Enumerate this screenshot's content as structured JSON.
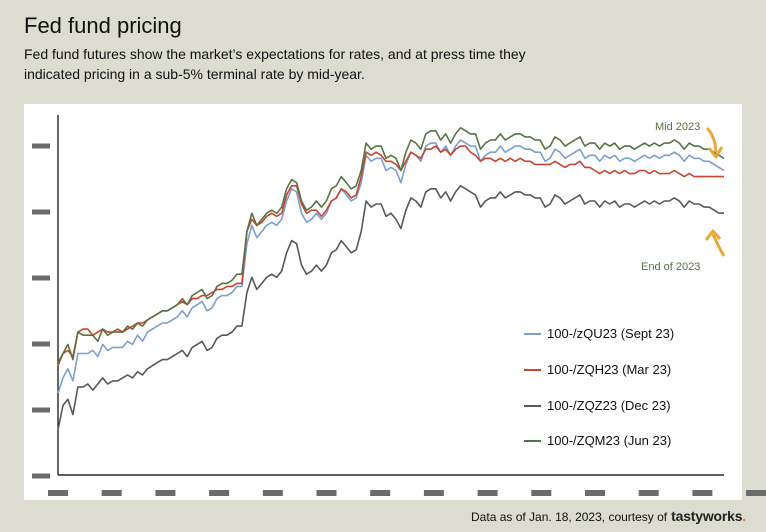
{
  "header": {
    "title": "Fed fund pricing",
    "subtitle": "Fed fund futures show the market’s expectations for rates, and at press time they indicated pricing in a sub-5% terminal rate by mid-year."
  },
  "footer": {
    "source_text": "Data as of Jan. 18, 2023, courtesy of",
    "brand_name": "tastyworks",
    "brand_dot": "."
  },
  "annotations": {
    "top": "Mid 2023",
    "bottom": "End of 2023",
    "arrow_color": "#e8a93a"
  },
  "chart_data": {
    "type": "line",
    "title": "",
    "xlabel": "",
    "ylabel": "",
    "x_ticks_count": 14,
    "y_ticks_count": 6,
    "tick_labels_redacted": true,
    "x": [
      0,
      1,
      2,
      3,
      4,
      5,
      6,
      7,
      8,
      9,
      10,
      11,
      12,
      13,
      14,
      15,
      16,
      17,
      18,
      19,
      20,
      21,
      22,
      23,
      24,
      25,
      26,
      27,
      28,
      29,
      30,
      31,
      32,
      33,
      34,
      35,
      36,
      37,
      38,
      39,
      40,
      41,
      42,
      43,
      44,
      45,
      46,
      47,
      48,
      49,
      50,
      51,
      52,
      53,
      54,
      55,
      56,
      57,
      58,
      59,
      60,
      61,
      62,
      63,
      64,
      65,
      66,
      67,
      68,
      69,
      70,
      71,
      72,
      73,
      74,
      75,
      76,
      77,
      78,
      79,
      80,
      81,
      82,
      83,
      84,
      85,
      86,
      87,
      88,
      89,
      90,
      91,
      92,
      93,
      94,
      95,
      96,
      97,
      98,
      99,
      100,
      101,
      102,
      103,
      104,
      105,
      106,
      107,
      108,
      109,
      110,
      111,
      112,
      113,
      114,
      115,
      116,
      117,
      118,
      119,
      120,
      121,
      122,
      123,
      124,
      125,
      126,
      127,
      128,
      129,
      130,
      131,
      132,
      133,
      134
    ],
    "ylim": [
      0,
      100
    ],
    "xlim": [
      0,
      134
    ],
    "series": [
      {
        "name": "100-/zQU23 (Sept 23)",
        "color": "#7b9fcf",
        "values": [
          17,
          22,
          25,
          21,
          30,
          30,
          30,
          31,
          29,
          33,
          31,
          32,
          32,
          32,
          34,
          33,
          36,
          34,
          37,
          38,
          39,
          40,
          40,
          41,
          42,
          44,
          42,
          45,
          46,
          47,
          44,
          45,
          48,
          49,
          49,
          50,
          52,
          52,
          66,
          72,
          68,
          70,
          72,
          73,
          72,
          74,
          80,
          84,
          83,
          76,
          73,
          74,
          76,
          74,
          76,
          80,
          81,
          84,
          82,
          80,
          81,
          86,
          95,
          93,
          94,
          94,
          90,
          91,
          90,
          86,
          92,
          96,
          95,
          93,
          98,
          99,
          99,
          96,
          98,
          95,
          98,
          100,
          99,
          98,
          98,
          93,
          95,
          96,
          96,
          98,
          96,
          97,
          98,
          98,
          97,
          97,
          96,
          96,
          93,
          94,
          97,
          96,
          94,
          95,
          96,
          97,
          94,
          95,
          95,
          93,
          95,
          94,
          95,
          93,
          94,
          94,
          93,
          94,
          95,
          94,
          95,
          94,
          95,
          95,
          96,
          95,
          93,
          95,
          94,
          94,
          93,
          93,
          92,
          91,
          90
        ]
      },
      {
        "name": "100-/ZQH23 (Mar 23)",
        "color": "#c8452f",
        "values": [
          26,
          30,
          31,
          29,
          37,
          38,
          38,
          36,
          37,
          38,
          37,
          37,
          38,
          37,
          38,
          39,
          40,
          40,
          41,
          42,
          43,
          44,
          44,
          45,
          46,
          47,
          46,
          48,
          48,
          49,
          49,
          50,
          51,
          51,
          52,
          52,
          53,
          53,
          70,
          74,
          72,
          73,
          75,
          76,
          75,
          76,
          82,
          85,
          85,
          79,
          76,
          77,
          77,
          75,
          77,
          80,
          81,
          84,
          83,
          81,
          82,
          88,
          96,
          95,
          96,
          95,
          93,
          93,
          92,
          90,
          93,
          96,
          95,
          94,
          97,
          97,
          98,
          96,
          97,
          95,
          97,
          98,
          98,
          96,
          95,
          93,
          94,
          94,
          93,
          94,
          93,
          94,
          93,
          94,
          93,
          93,
          92,
          92,
          92,
          92,
          93,
          92,
          91,
          92,
          92,
          93,
          91,
          91,
          90,
          89,
          90,
          89,
          90,
          89,
          90,
          89,
          89,
          90,
          90,
          89,
          90,
          89,
          89,
          89,
          90,
          89,
          88,
          89,
          88,
          88,
          88,
          88,
          88,
          88,
          88
        ]
      },
      {
        "name": "100-/ZQZ23 (Dec 23)",
        "color": "#585858",
        "values": [
          5,
          13,
          15,
          10,
          19,
          19,
          20,
          18,
          20,
          22,
          20,
          21,
          21,
          22,
          23,
          22,
          24,
          23,
          25,
          26,
          27,
          28,
          28,
          29,
          30,
          31,
          29,
          32,
          33,
          34,
          31,
          32,
          35,
          36,
          36,
          37,
          39,
          39,
          50,
          55,
          51,
          53,
          55,
          56,
          55,
          57,
          63,
          67,
          66,
          59,
          56,
          57,
          59,
          57,
          59,
          63,
          64,
          67,
          65,
          63,
          64,
          70,
          80,
          78,
          79,
          79,
          75,
          76,
          74,
          71,
          77,
          81,
          80,
          78,
          83,
          84,
          84,
          81,
          83,
          80,
          83,
          85,
          84,
          83,
          82,
          78,
          80,
          81,
          81,
          83,
          81,
          82,
          83,
          83,
          82,
          82,
          81,
          81,
          78,
          79,
          82,
          81,
          79,
          80,
          81,
          82,
          79,
          80,
          80,
          78,
          80,
          79,
          80,
          78,
          79,
          79,
          78,
          79,
          80,
          79,
          80,
          79,
          80,
          80,
          81,
          80,
          78,
          80,
          79,
          79,
          78,
          78,
          77,
          76,
          76
        ]
      },
      {
        "name": "100-/ZQM23 (Jun 23)",
        "color": "#5a7244",
        "values": [
          27,
          30,
          33,
          28,
          37,
          36,
          36,
          36,
          34,
          38,
          36,
          37,
          37,
          37,
          39,
          38,
          40,
          39,
          41,
          42,
          43,
          44,
          44,
          45,
          46,
          48,
          46,
          49,
          50,
          51,
          48,
          49,
          52,
          53,
          53,
          54,
          56,
          56,
          70,
          76,
          72,
          74,
          76,
          77,
          76,
          78,
          84,
          87,
          86,
          80,
          77,
          78,
          80,
          78,
          80,
          84,
          85,
          88,
          86,
          84,
          85,
          90,
          99,
          97,
          98,
          98,
          94,
          95,
          94,
          90,
          96,
          100,
          99,
          97,
          102,
          103,
          103,
          100,
          102,
          99,
          102,
          104,
          103,
          102,
          102,
          97,
          99,
          100,
          100,
          102,
          100,
          101,
          102,
          102,
          101,
          101,
          100,
          100,
          97,
          98,
          101,
          100,
          98,
          99,
          100,
          101,
          98,
          99,
          99,
          97,
          99,
          98,
          99,
          97,
          98,
          98,
          97,
          98,
          99,
          98,
          99,
          98,
          99,
          99,
          100,
          99,
          97,
          99,
          98,
          98,
          97,
          97,
          96,
          95,
          94
        ]
      }
    ],
    "legend_position": "bottom-right",
    "grid": false
  }
}
